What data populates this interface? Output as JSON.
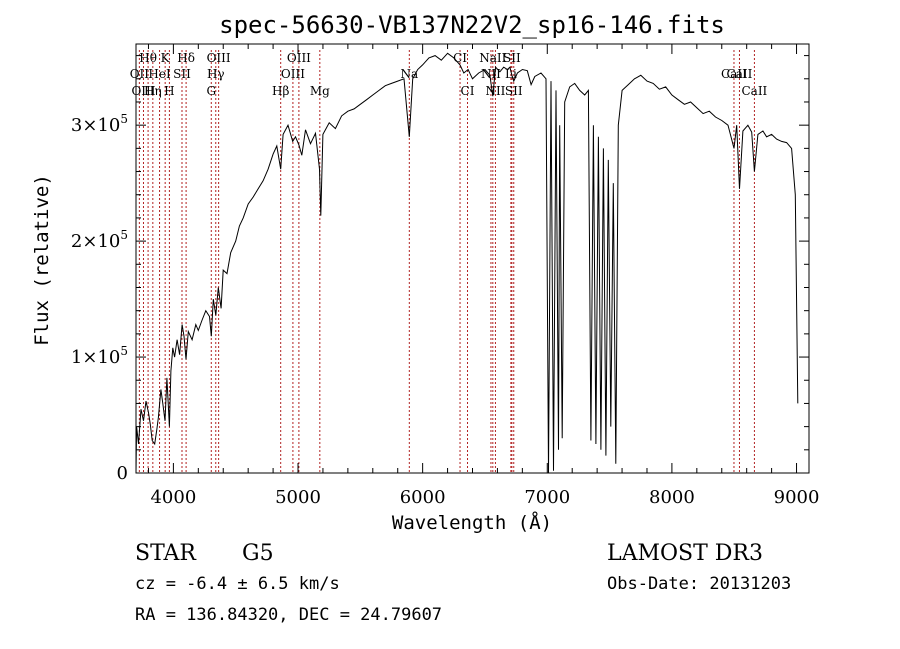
{
  "chart_data": {
    "type": "line",
    "title": "spec-56630-VB137N22V2_sp16-146.fits",
    "xlabel": "Wavelength (Å)",
    "ylabel": "Flux (relative)",
    "xlim": [
      3700,
      9100
    ],
    "ylim": [
      0,
      370000
    ],
    "x_ticks": [
      4000,
      5000,
      6000,
      7000,
      8000,
      9000
    ],
    "x_tick_labels": [
      "4000",
      "5000",
      "6000",
      "7000",
      "8000",
      "9000"
    ],
    "y_ticks": [
      0,
      100000,
      200000,
      300000
    ],
    "y_tick_labels": [
      {
        "mantissa": "0",
        "exp": ""
      },
      {
        "mantissa": "1×10",
        "exp": "5"
      },
      {
        "mantissa": "2×10",
        "exp": "5"
      },
      {
        "mantissa": "3×10",
        "exp": "5"
      }
    ],
    "grid": false,
    "line_color": "#000000",
    "marker_color": "#b22222",
    "spectrum": [
      [
        3700,
        0
      ],
      [
        3705,
        40000
      ],
      [
        3720,
        25000
      ],
      [
        3740,
        55000
      ],
      [
        3760,
        45000
      ],
      [
        3780,
        62000
      ],
      [
        3800,
        52000
      ],
      [
        3815,
        42000
      ],
      [
        3830,
        28000
      ],
      [
        3850,
        25000
      ],
      [
        3868,
        38000
      ],
      [
        3880,
        48000
      ],
      [
        3900,
        72000
      ],
      [
        3915,
        60000
      ],
      [
        3933,
        45000
      ],
      [
        3948,
        82000
      ],
      [
        3968,
        40000
      ],
      [
        3980,
        88000
      ],
      [
        3995,
        108000
      ],
      [
        4010,
        100000
      ],
      [
        4030,
        115000
      ],
      [
        4050,
        102000
      ],
      [
        4070,
        128000
      ],
      [
        4085,
        118000
      ],
      [
        4101,
        98000
      ],
      [
        4120,
        122000
      ],
      [
        4150,
        115000
      ],
      [
        4180,
        128000
      ],
      [
        4200,
        123000
      ],
      [
        4230,
        132000
      ],
      [
        4260,
        140000
      ],
      [
        4290,
        135000
      ],
      [
        4304,
        118000
      ],
      [
        4320,
        150000
      ],
      [
        4340,
        136000
      ],
      [
        4360,
        160000
      ],
      [
        4383,
        142000
      ],
      [
        4400,
        175000
      ],
      [
        4430,
        172000
      ],
      [
        4460,
        190000
      ],
      [
        4500,
        200000
      ],
      [
        4530,
        213000
      ],
      [
        4560,
        220000
      ],
      [
        4600,
        232000
      ],
      [
        4640,
        238000
      ],
      [
        4680,
        245000
      ],
      [
        4720,
        252000
      ],
      [
        4760,
        262000
      ],
      [
        4800,
        275000
      ],
      [
        4830,
        282000
      ],
      [
        4861,
        262000
      ],
      [
        4880,
        292000
      ],
      [
        4920,
        300000
      ],
      [
        4957,
        286000
      ],
      [
        4980,
        290000
      ],
      [
        5007,
        283000
      ],
      [
        5030,
        274000
      ],
      [
        5060,
        296000
      ],
      [
        5100,
        284000
      ],
      [
        5140,
        293000
      ],
      [
        5172,
        262000
      ],
      [
        5183,
        222000
      ],
      [
        5200,
        292000
      ],
      [
        5250,
        302000
      ],
      [
        5300,
        297000
      ],
      [
        5350,
        308000
      ],
      [
        5400,
        312000
      ],
      [
        5450,
        314000
      ],
      [
        5500,
        318000
      ],
      [
        5550,
        322000
      ],
      [
        5600,
        326000
      ],
      [
        5650,
        330000
      ],
      [
        5700,
        334000
      ],
      [
        5750,
        336000
      ],
      [
        5800,
        338000
      ],
      [
        5850,
        340000
      ],
      [
        5893,
        290000
      ],
      [
        5920,
        340000
      ],
      [
        5960,
        348000
      ],
      [
        6000,
        352000
      ],
      [
        6050,
        358000
      ],
      [
        6100,
        360000
      ],
      [
        6150,
        356000
      ],
      [
        6200,
        362000
      ],
      [
        6250,
        358000
      ],
      [
        6300,
        352000
      ],
      [
        6330,
        345000
      ],
      [
        6365,
        348000
      ],
      [
        6400,
        340000
      ],
      [
        6450,
        345000
      ],
      [
        6500,
        348000
      ],
      [
        6540,
        343000
      ],
      [
        6563,
        325000
      ],
      [
        6585,
        350000
      ],
      [
        6620,
        346000
      ],
      [
        6650,
        350000
      ],
      [
        6680,
        348000
      ],
      [
        6700,
        350000
      ],
      [
        6716,
        343000
      ],
      [
        6731,
        338000
      ],
      [
        6760,
        345000
      ],
      [
        6800,
        348000
      ],
      [
        6840,
        347000
      ],
      [
        6870,
        335000
      ],
      [
        6900,
        342000
      ],
      [
        6950,
        345000
      ],
      [
        6990,
        340000
      ],
      [
        7010,
        0
      ],
      [
        7030,
        338000
      ],
      [
        7050,
        2000
      ],
      [
        7070,
        330000
      ],
      [
        7090,
        20000
      ],
      [
        7100,
        300000
      ],
      [
        7120,
        30000
      ],
      [
        7140,
        320000
      ],
      [
        7180,
        333000
      ],
      [
        7220,
        336000
      ],
      [
        7260,
        330000
      ],
      [
        7300,
        326000
      ],
      [
        7330,
        330000
      ],
      [
        7350,
        28000
      ],
      [
        7370,
        300000
      ],
      [
        7390,
        25000
      ],
      [
        7410,
        290000
      ],
      [
        7430,
        20000
      ],
      [
        7450,
        280000
      ],
      [
        7470,
        15000
      ],
      [
        7490,
        270000
      ],
      [
        7510,
        40000
      ],
      [
        7530,
        250000
      ],
      [
        7550,
        8000
      ],
      [
        7570,
        300000
      ],
      [
        7600,
        330000
      ],
      [
        7650,
        335000
      ],
      [
        7700,
        340000
      ],
      [
        7750,
        343000
      ],
      [
        7800,
        338000
      ],
      [
        7850,
        336000
      ],
      [
        7900,
        331000
      ],
      [
        7950,
        333000
      ],
      [
        8000,
        326000
      ],
      [
        8050,
        322000
      ],
      [
        8100,
        318000
      ],
      [
        8150,
        320000
      ],
      [
        8200,
        315000
      ],
      [
        8250,
        310000
      ],
      [
        8300,
        312000
      ],
      [
        8350,
        307000
      ],
      [
        8400,
        304000
      ],
      [
        8450,
        300000
      ],
      [
        8498,
        280000
      ],
      [
        8520,
        300000
      ],
      [
        8542,
        245000
      ],
      [
        8570,
        295000
      ],
      [
        8610,
        300000
      ],
      [
        8640,
        294000
      ],
      [
        8662,
        260000
      ],
      [
        8690,
        292000
      ],
      [
        8730,
        295000
      ],
      [
        8760,
        290000
      ],
      [
        8800,
        292000
      ],
      [
        8840,
        288000
      ],
      [
        8880,
        286000
      ],
      [
        8920,
        285000
      ],
      [
        8960,
        280000
      ],
      [
        8990,
        240000
      ],
      [
        9010,
        60000
      ]
    ],
    "lines_upper": [
      {
        "label": "Hθ",
        "x": 3797
      },
      {
        "label": "K",
        "x": 3934
      },
      {
        "label": "Hδ",
        "x": 4102
      },
      {
        "label": "OIII",
        "x": 4363
      },
      {
        "label": "OIII",
        "x": 5007
      },
      {
        "label": "CI",
        "x": 6300
      },
      {
        "label": "NaII",
        "x": 6563
      },
      {
        "label": "SII",
        "x": 6716
      }
    ],
    "lines_middle": [
      {
        "label": "OII",
        "x": 3727
      },
      {
        "label": "HeI",
        "x": 3889
      },
      {
        "label": "SII",
        "x": 4069
      },
      {
        "label": "Hγ",
        "x": 4340
      },
      {
        "label": "OIII",
        "x": 4959
      },
      {
        "label": "Na",
        "x": 5893
      },
      {
        "label": "NII",
        "x": 6548
      },
      {
        "label": "Li",
        "x": 6708
      },
      {
        "label": "CaII",
        "x": 8498
      },
      {
        "label": "CaII",
        "x": 8542
      }
    ],
    "lines_lower": [
      {
        "label": "OIII",
        "x": 3760
      },
      {
        "label": "Hη",
        "x": 3835
      },
      {
        "label": "H",
        "x": 3968
      },
      {
        "label": "G",
        "x": 4304
      },
      {
        "label": "Hβ",
        "x": 4861
      },
      {
        "label": "Mg",
        "x": 5175
      },
      {
        "label": "CI",
        "x": 6360
      },
      {
        "label": "NII",
        "x": 6584
      },
      {
        "label": "SII",
        "x": 6731
      },
      {
        "label": "CaII",
        "x": 8662
      }
    ]
  },
  "info": {
    "class": "STAR",
    "subclass": "G5",
    "survey": "LAMOST DR3",
    "cz": "cz = -6.4 ± 6.5 km/s",
    "obs_date": "Obs-Date: 20131203",
    "coords": "RA = 136.84320, DEC =  24.79607"
  }
}
